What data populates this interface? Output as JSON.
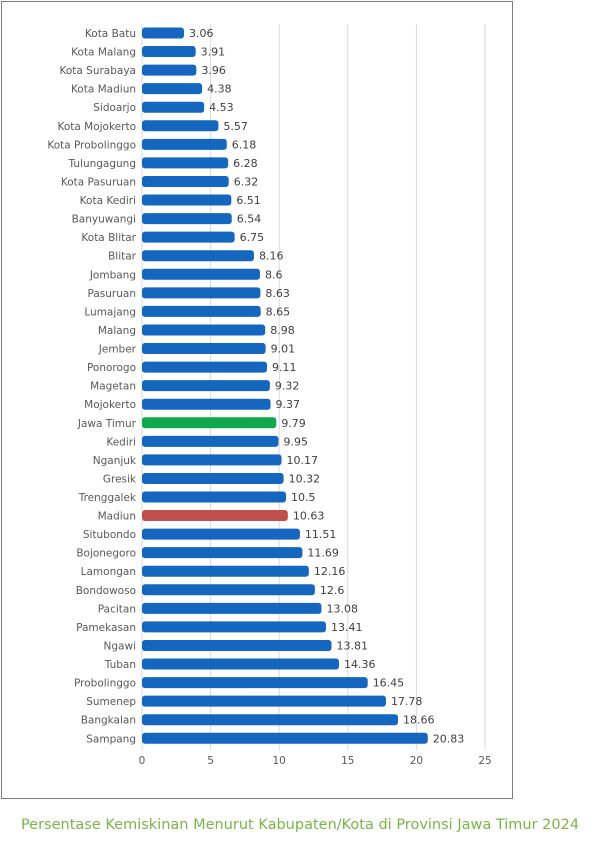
{
  "caption": "Persentase Kemiskinan Menurut Kabupaten/Kota di Provinsi Jawa Timur 2024",
  "colors": {
    "bar": "#1566bf",
    "highlight_province": "#0fa84c",
    "highlight_region": "#c0504d",
    "grid": "#d9d9d9",
    "text": "#595959"
  },
  "chart_data": {
    "type": "bar",
    "orientation": "horizontal",
    "title": "",
    "xlabel": "",
    "ylabel": "",
    "xlim": [
      0,
      25
    ],
    "xticks": [
      0,
      5,
      10,
      15,
      20,
      25
    ],
    "grid": true,
    "highlight": {
      "Jawa Timur": "highlight_province",
      "Madiun": "highlight_region"
    },
    "categories": [
      "Kota Batu",
      "Kota Malang",
      "Kota Surabaya",
      "Kota Madiun",
      "Sidoarjo",
      "Kota Mojokerto",
      "Kota Probolinggo",
      "Tulungagung",
      "Kota Pasuruan",
      "Kota Kediri",
      "Banyuwangi",
      "Kota Blitar",
      "Blitar",
      "Jombang",
      "Pasuruan",
      "Lumajang",
      "Malang",
      "Jember",
      "Ponorogo",
      "Magetan",
      "Mojokerto",
      "Jawa Timur",
      "Kediri",
      "Nganjuk",
      "Gresik",
      "Trenggalek",
      "Madiun",
      "Situbondo",
      "Bojonegoro",
      "Lamongan",
      "Bondowoso",
      "Pacitan",
      "Pamekasan",
      "Ngawi",
      "Tuban",
      "Probolinggo",
      "Sumenep",
      "Bangkalan",
      "Sampang"
    ],
    "values": [
      3.06,
      3.91,
      3.96,
      4.38,
      4.53,
      5.57,
      6.18,
      6.28,
      6.32,
      6.51,
      6.54,
      6.75,
      8.16,
      8.6,
      8.63,
      8.65,
      8.98,
      9.01,
      9.11,
      9.32,
      9.37,
      9.79,
      9.95,
      10.17,
      10.32,
      10.5,
      10.63,
      11.51,
      11.69,
      12.16,
      12.6,
      13.08,
      13.41,
      13.81,
      14.36,
      16.45,
      17.78,
      18.66,
      20.83
    ],
    "value_labels": [
      "3.06",
      "3.91",
      "3.96",
      "4.38",
      "4.53",
      "5.57",
      "6.18",
      "6.28",
      "6.32",
      "6.51",
      "6.54",
      "6.75",
      "8.16",
      "8.6",
      "8.63",
      "8.65",
      "8.98",
      "9.01",
      "9.11",
      "9.32",
      "9.37",
      "9.79",
      "9.95",
      "10.17",
      "10.32",
      "10.5",
      "10.63",
      "11.51",
      "11.69",
      "12.16",
      "12.6",
      "13.08",
      "13.41",
      "13.81",
      "14.36",
      "16.45",
      "17.78",
      "18.66",
      "20.83"
    ]
  }
}
